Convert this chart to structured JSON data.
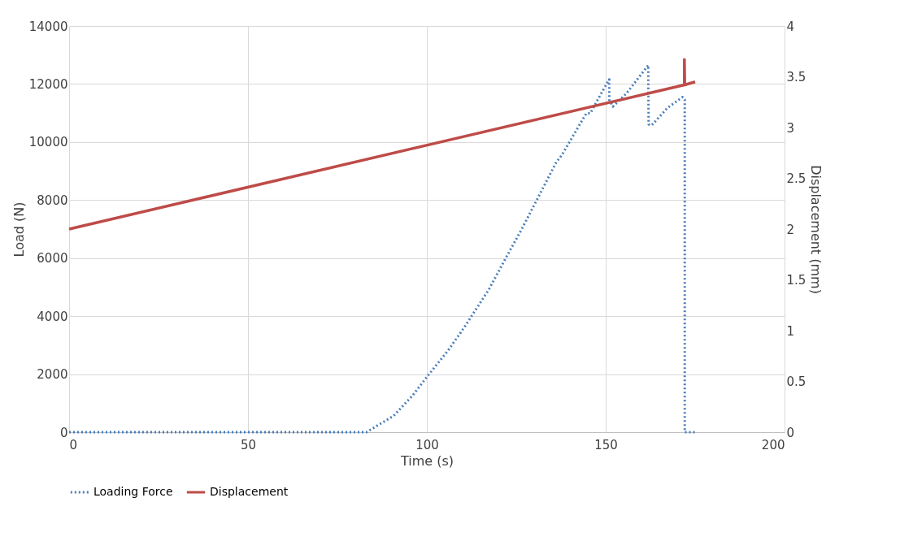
{
  "chart_data": {
    "type": "line",
    "xlabel": "Time (s)",
    "ylabel": "Load (N)",
    "y2label": "Displacement  (mm)",
    "xlim": [
      0,
      200
    ],
    "xticks": [
      0,
      50,
      100,
      150,
      200
    ],
    "ylim": [
      0,
      14000
    ],
    "yticks": [
      0,
      2000,
      4000,
      6000,
      8000,
      10000,
      12000,
      14000
    ],
    "y2lim": [
      0,
      4
    ],
    "y2ticks": [
      0,
      0.5,
      1,
      1.5,
      2,
      2.5,
      3,
      3.5,
      4
    ],
    "grid": true,
    "legend": "bottom",
    "marker": "none",
    "series": [
      {
        "name": "Loading Force",
        "color": "#4a7ebb",
        "line_style": "dotted",
        "x": [
          0,
          83.1,
          90.7,
          96.0,
          99.8,
          105.9,
          110.4,
          117.3,
          122.2,
          126.4,
          130.9,
          136.2,
          137.7,
          143.0,
          144.6,
          145.7,
          148.4,
          151.0,
          151.0,
          152.0,
          155.9,
          161.9,
          162.0,
          162.8,
          167.3,
          171.5,
          172.1,
          172.1,
          175
        ],
        "values": [
          0,
          0,
          560,
          1260,
          1870,
          2810,
          3600,
          4910,
          6030,
          6970,
          8040,
          9310,
          9540,
          10660,
          10990,
          10990,
          11600,
          12160,
          11460,
          11220,
          11690,
          12650,
          10610,
          10570,
          11180,
          11550,
          11460,
          0,
          0
        ]
      },
      {
        "name": "Displacement",
        "color": "#be4b48",
        "line_style": "solid",
        "axis": "y2",
        "x": [
          0,
          172,
          172,
          172.1,
          175
        ],
        "values": [
          2.0,
          3.42,
          3.67,
          3.42,
          3.45
        ]
      }
    ]
  }
}
